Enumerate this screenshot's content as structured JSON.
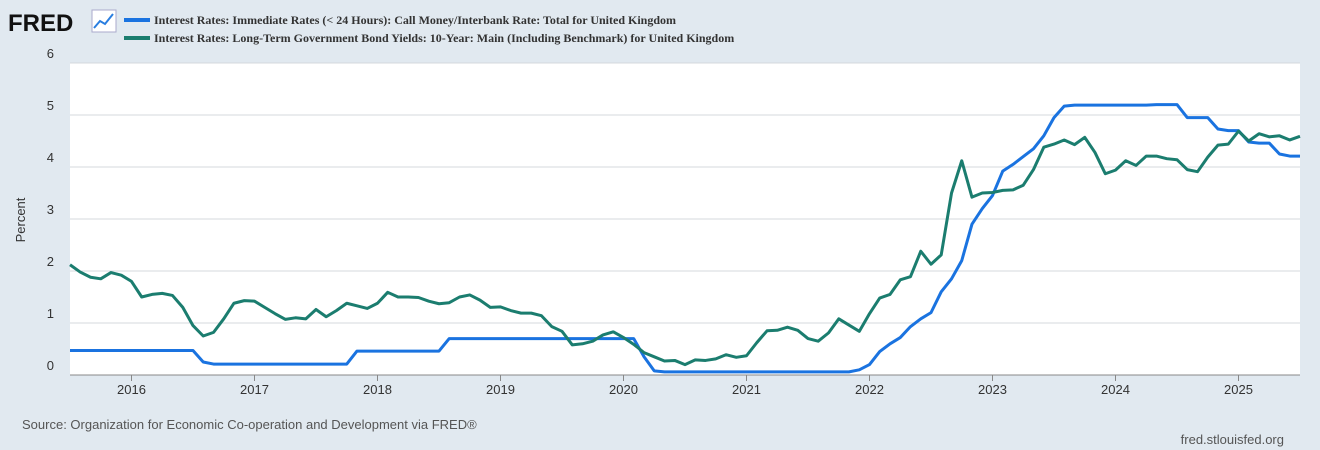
{
  "logo": "FRED",
  "chart_data": {
    "type": "line",
    "y_label": "Percent",
    "source": "Source: Organization for Economic Co-operation and Development via FRED®",
    "credit": "fred.stlouisfed.org",
    "grid": true,
    "xlim": [
      2015.5,
      2025.5
    ],
    "xticks": [
      2016,
      2017,
      2018,
      2019,
      2020,
      2021,
      2022,
      2023,
      2024,
      2025
    ],
    "ylim": [
      0,
      6
    ],
    "yticks": [
      0,
      1,
      2,
      3,
      4,
      5,
      6
    ],
    "x": [
      2015.5,
      2015.583,
      2015.667,
      2015.75,
      2015.833,
      2015.917,
      2016.0,
      2016.083,
      2016.167,
      2016.25,
      2016.333,
      2016.417,
      2016.5,
      2016.583,
      2016.667,
      2016.75,
      2016.833,
      2016.917,
      2017.0,
      2017.083,
      2017.167,
      2017.25,
      2017.333,
      2017.417,
      2017.5,
      2017.583,
      2017.667,
      2017.75,
      2017.833,
      2017.917,
      2018.0,
      2018.083,
      2018.167,
      2018.25,
      2018.333,
      2018.417,
      2018.5,
      2018.583,
      2018.667,
      2018.75,
      2018.833,
      2018.917,
      2019.0,
      2019.083,
      2019.167,
      2019.25,
      2019.333,
      2019.417,
      2019.5,
      2019.583,
      2019.667,
      2019.75,
      2019.833,
      2019.917,
      2020.0,
      2020.083,
      2020.167,
      2020.25,
      2020.333,
      2020.417,
      2020.5,
      2020.583,
      2020.667,
      2020.75,
      2020.833,
      2020.917,
      2021.0,
      2021.083,
      2021.167,
      2021.25,
      2021.333,
      2021.417,
      2021.5,
      2021.583,
      2021.667,
      2021.75,
      2021.833,
      2021.917,
      2022.0,
      2022.083,
      2022.167,
      2022.25,
      2022.333,
      2022.417,
      2022.5,
      2022.583,
      2022.667,
      2022.75,
      2022.833,
      2022.917,
      2023.0,
      2023.083,
      2023.167,
      2023.25,
      2023.333,
      2023.417,
      2023.5,
      2023.583,
      2023.667,
      2023.75,
      2023.833,
      2023.917,
      2024.0,
      2024.083,
      2024.167,
      2024.25,
      2024.333,
      2024.417,
      2024.5,
      2024.583,
      2024.667,
      2024.75,
      2024.833,
      2024.917,
      2025.0,
      2025.083,
      2025.167,
      2025.25,
      2025.333,
      2025.417,
      2025.5
    ],
    "series": [
      {
        "name": "Interest Rates: Immediate Rates (< 24 Hours): Call Money/Interbank Rate: Total for United Kingdom",
        "color": "#1a73e0",
        "values": [
          0.47,
          0.47,
          0.47,
          0.47,
          0.47,
          0.47,
          0.47,
          0.47,
          0.47,
          0.47,
          0.47,
          0.47,
          0.47,
          0.25,
          0.21,
          0.21,
          0.21,
          0.21,
          0.21,
          0.21,
          0.21,
          0.21,
          0.21,
          0.21,
          0.21,
          0.21,
          0.21,
          0.21,
          0.46,
          0.46,
          0.46,
          0.46,
          0.46,
          0.46,
          0.46,
          0.46,
          0.46,
          0.7,
          0.7,
          0.7,
          0.7,
          0.7,
          0.7,
          0.7,
          0.7,
          0.7,
          0.7,
          0.7,
          0.7,
          0.7,
          0.7,
          0.7,
          0.7,
          0.7,
          0.7,
          0.7,
          0.35,
          0.08,
          0.06,
          0.06,
          0.06,
          0.06,
          0.06,
          0.06,
          0.06,
          0.06,
          0.06,
          0.06,
          0.06,
          0.06,
          0.06,
          0.06,
          0.06,
          0.06,
          0.06,
          0.06,
          0.06,
          0.1,
          0.2,
          0.45,
          0.6,
          0.72,
          0.93,
          1.08,
          1.2,
          1.6,
          1.85,
          2.2,
          2.9,
          3.2,
          3.45,
          3.92,
          4.05,
          4.2,
          4.35,
          4.6,
          4.95,
          5.17,
          5.19,
          5.19,
          5.19,
          5.19,
          5.19,
          5.19,
          5.19,
          5.19,
          5.2,
          5.2,
          5.2,
          4.95,
          4.95,
          4.95,
          4.73,
          4.7,
          4.7,
          4.48,
          4.46,
          4.46,
          4.25,
          4.21,
          4.21
        ]
      },
      {
        "name": "Interest Rates: Long-Term Government Bond Yields: 10-Year: Main (Including Benchmark) for United Kingdom",
        "color": "#1b7d6f",
        "values": [
          2.12,
          1.98,
          1.88,
          1.85,
          1.97,
          1.92,
          1.8,
          1.5,
          1.55,
          1.57,
          1.53,
          1.3,
          0.95,
          0.75,
          0.82,
          1.08,
          1.38,
          1.43,
          1.42,
          1.3,
          1.18,
          1.07,
          1.1,
          1.08,
          1.26,
          1.12,
          1.24,
          1.38,
          1.33,
          1.28,
          1.38,
          1.59,
          1.5,
          1.5,
          1.49,
          1.42,
          1.37,
          1.39,
          1.5,
          1.54,
          1.44,
          1.3,
          1.31,
          1.24,
          1.19,
          1.19,
          1.14,
          0.93,
          0.84,
          0.58,
          0.6,
          0.65,
          0.77,
          0.83,
          0.72,
          0.59,
          0.43,
          0.35,
          0.27,
          0.28,
          0.2,
          0.29,
          0.28,
          0.31,
          0.39,
          0.34,
          0.37,
          0.62,
          0.85,
          0.86,
          0.92,
          0.86,
          0.7,
          0.65,
          0.81,
          1.08,
          0.96,
          0.84,
          1.18,
          1.48,
          1.55,
          1.83,
          1.89,
          2.38,
          2.13,
          2.31,
          3.5,
          4.12,
          3.42,
          3.5,
          3.51,
          3.55,
          3.56,
          3.65,
          3.95,
          4.38,
          4.44,
          4.52,
          4.43,
          4.57,
          4.28,
          3.87,
          3.94,
          4.12,
          4.03,
          4.21,
          4.21,
          4.16,
          4.14,
          3.95,
          3.91,
          4.19,
          4.42,
          4.44,
          4.69,
          4.5,
          4.64,
          4.58,
          4.6,
          4.52,
          4.59
        ]
      }
    ]
  }
}
